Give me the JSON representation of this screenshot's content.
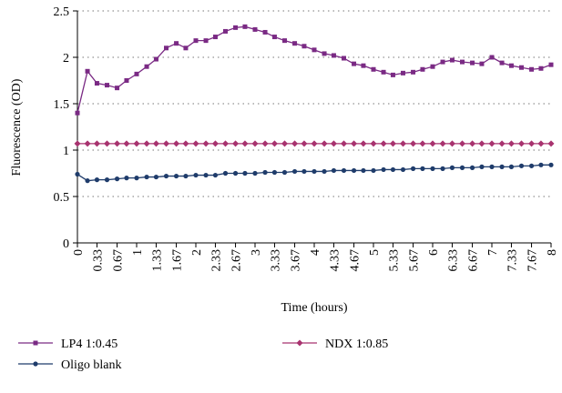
{
  "chart_data": {
    "type": "line",
    "x_label": "Time (hours)",
    "y_label": "Fluorescence (OD)",
    "x": [
      0,
      0.17,
      0.33,
      0.5,
      0.67,
      0.83,
      1,
      1.17,
      1.33,
      1.5,
      1.67,
      1.83,
      2,
      2.17,
      2.33,
      2.5,
      2.67,
      2.83,
      3,
      3.17,
      3.33,
      3.5,
      3.67,
      3.83,
      4,
      4.17,
      4.33,
      4.5,
      4.67,
      4.83,
      5,
      5.17,
      5.33,
      5.5,
      5.67,
      5.83,
      6,
      6.17,
      6.33,
      6.5,
      6.67,
      6.83,
      7,
      7.17,
      7.33,
      7.5,
      7.67,
      7.83,
      8
    ],
    "series": [
      {
        "name": "LP4 1:0.45",
        "color": "#7a2a84",
        "marker": "square",
        "values": [
          1.4,
          1.85,
          1.72,
          1.7,
          1.67,
          1.75,
          1.82,
          1.9,
          1.98,
          2.1,
          2.15,
          2.1,
          2.18,
          2.18,
          2.22,
          2.28,
          2.32,
          2.33,
          2.3,
          2.27,
          2.22,
          2.18,
          2.15,
          2.12,
          2.08,
          2.04,
          2.02,
          1.99,
          1.93,
          1.91,
          1.87,
          1.84,
          1.81,
          1.83,
          1.84,
          1.87,
          1.9,
          1.95,
          1.97,
          1.95,
          1.94,
          1.93,
          2.0,
          1.94,
          1.91,
          1.89,
          1.87,
          1.88,
          1.92
        ]
      },
      {
        "name": "NDX 1:0.85",
        "color": "#a8336f",
        "marker": "diamond",
        "values": [
          1.07,
          1.07,
          1.07,
          1.07,
          1.07,
          1.07,
          1.07,
          1.07,
          1.07,
          1.07,
          1.07,
          1.07,
          1.07,
          1.07,
          1.07,
          1.07,
          1.07,
          1.07,
          1.07,
          1.07,
          1.07,
          1.07,
          1.07,
          1.07,
          1.07,
          1.07,
          1.07,
          1.07,
          1.07,
          1.07,
          1.07,
          1.07,
          1.07,
          1.07,
          1.07,
          1.07,
          1.07,
          1.07,
          1.07,
          1.07,
          1.07,
          1.07,
          1.07,
          1.07,
          1.07,
          1.07,
          1.07,
          1.07,
          1.07
        ]
      },
      {
        "name": "Oligo blank",
        "color": "#1f3c6b",
        "marker": "circle",
        "values": [
          0.74,
          0.67,
          0.68,
          0.68,
          0.69,
          0.7,
          0.7,
          0.71,
          0.71,
          0.72,
          0.72,
          0.72,
          0.73,
          0.73,
          0.73,
          0.75,
          0.75,
          0.75,
          0.75,
          0.76,
          0.76,
          0.76,
          0.77,
          0.77,
          0.77,
          0.77,
          0.78,
          0.78,
          0.78,
          0.78,
          0.78,
          0.79,
          0.79,
          0.79,
          0.8,
          0.8,
          0.8,
          0.8,
          0.81,
          0.81,
          0.81,
          0.82,
          0.82,
          0.82,
          0.82,
          0.83,
          0.83,
          0.84,
          0.84
        ]
      }
    ],
    "xlim": [
      0,
      8
    ],
    "xticks": [
      0,
      0.33,
      0.67,
      1,
      1.33,
      1.67,
      2,
      2.33,
      2.67,
      3,
      3.33,
      3.67,
      4,
      4.33,
      4.67,
      5,
      5.33,
      5.67,
      6,
      6.33,
      6.67,
      7,
      7.33,
      7.67,
      8
    ],
    "ylim": [
      0,
      2.5
    ],
    "yticks": [
      0,
      0.5,
      1,
      1.5,
      2,
      2.5
    ],
    "grid": true,
    "legend": "bottom"
  }
}
